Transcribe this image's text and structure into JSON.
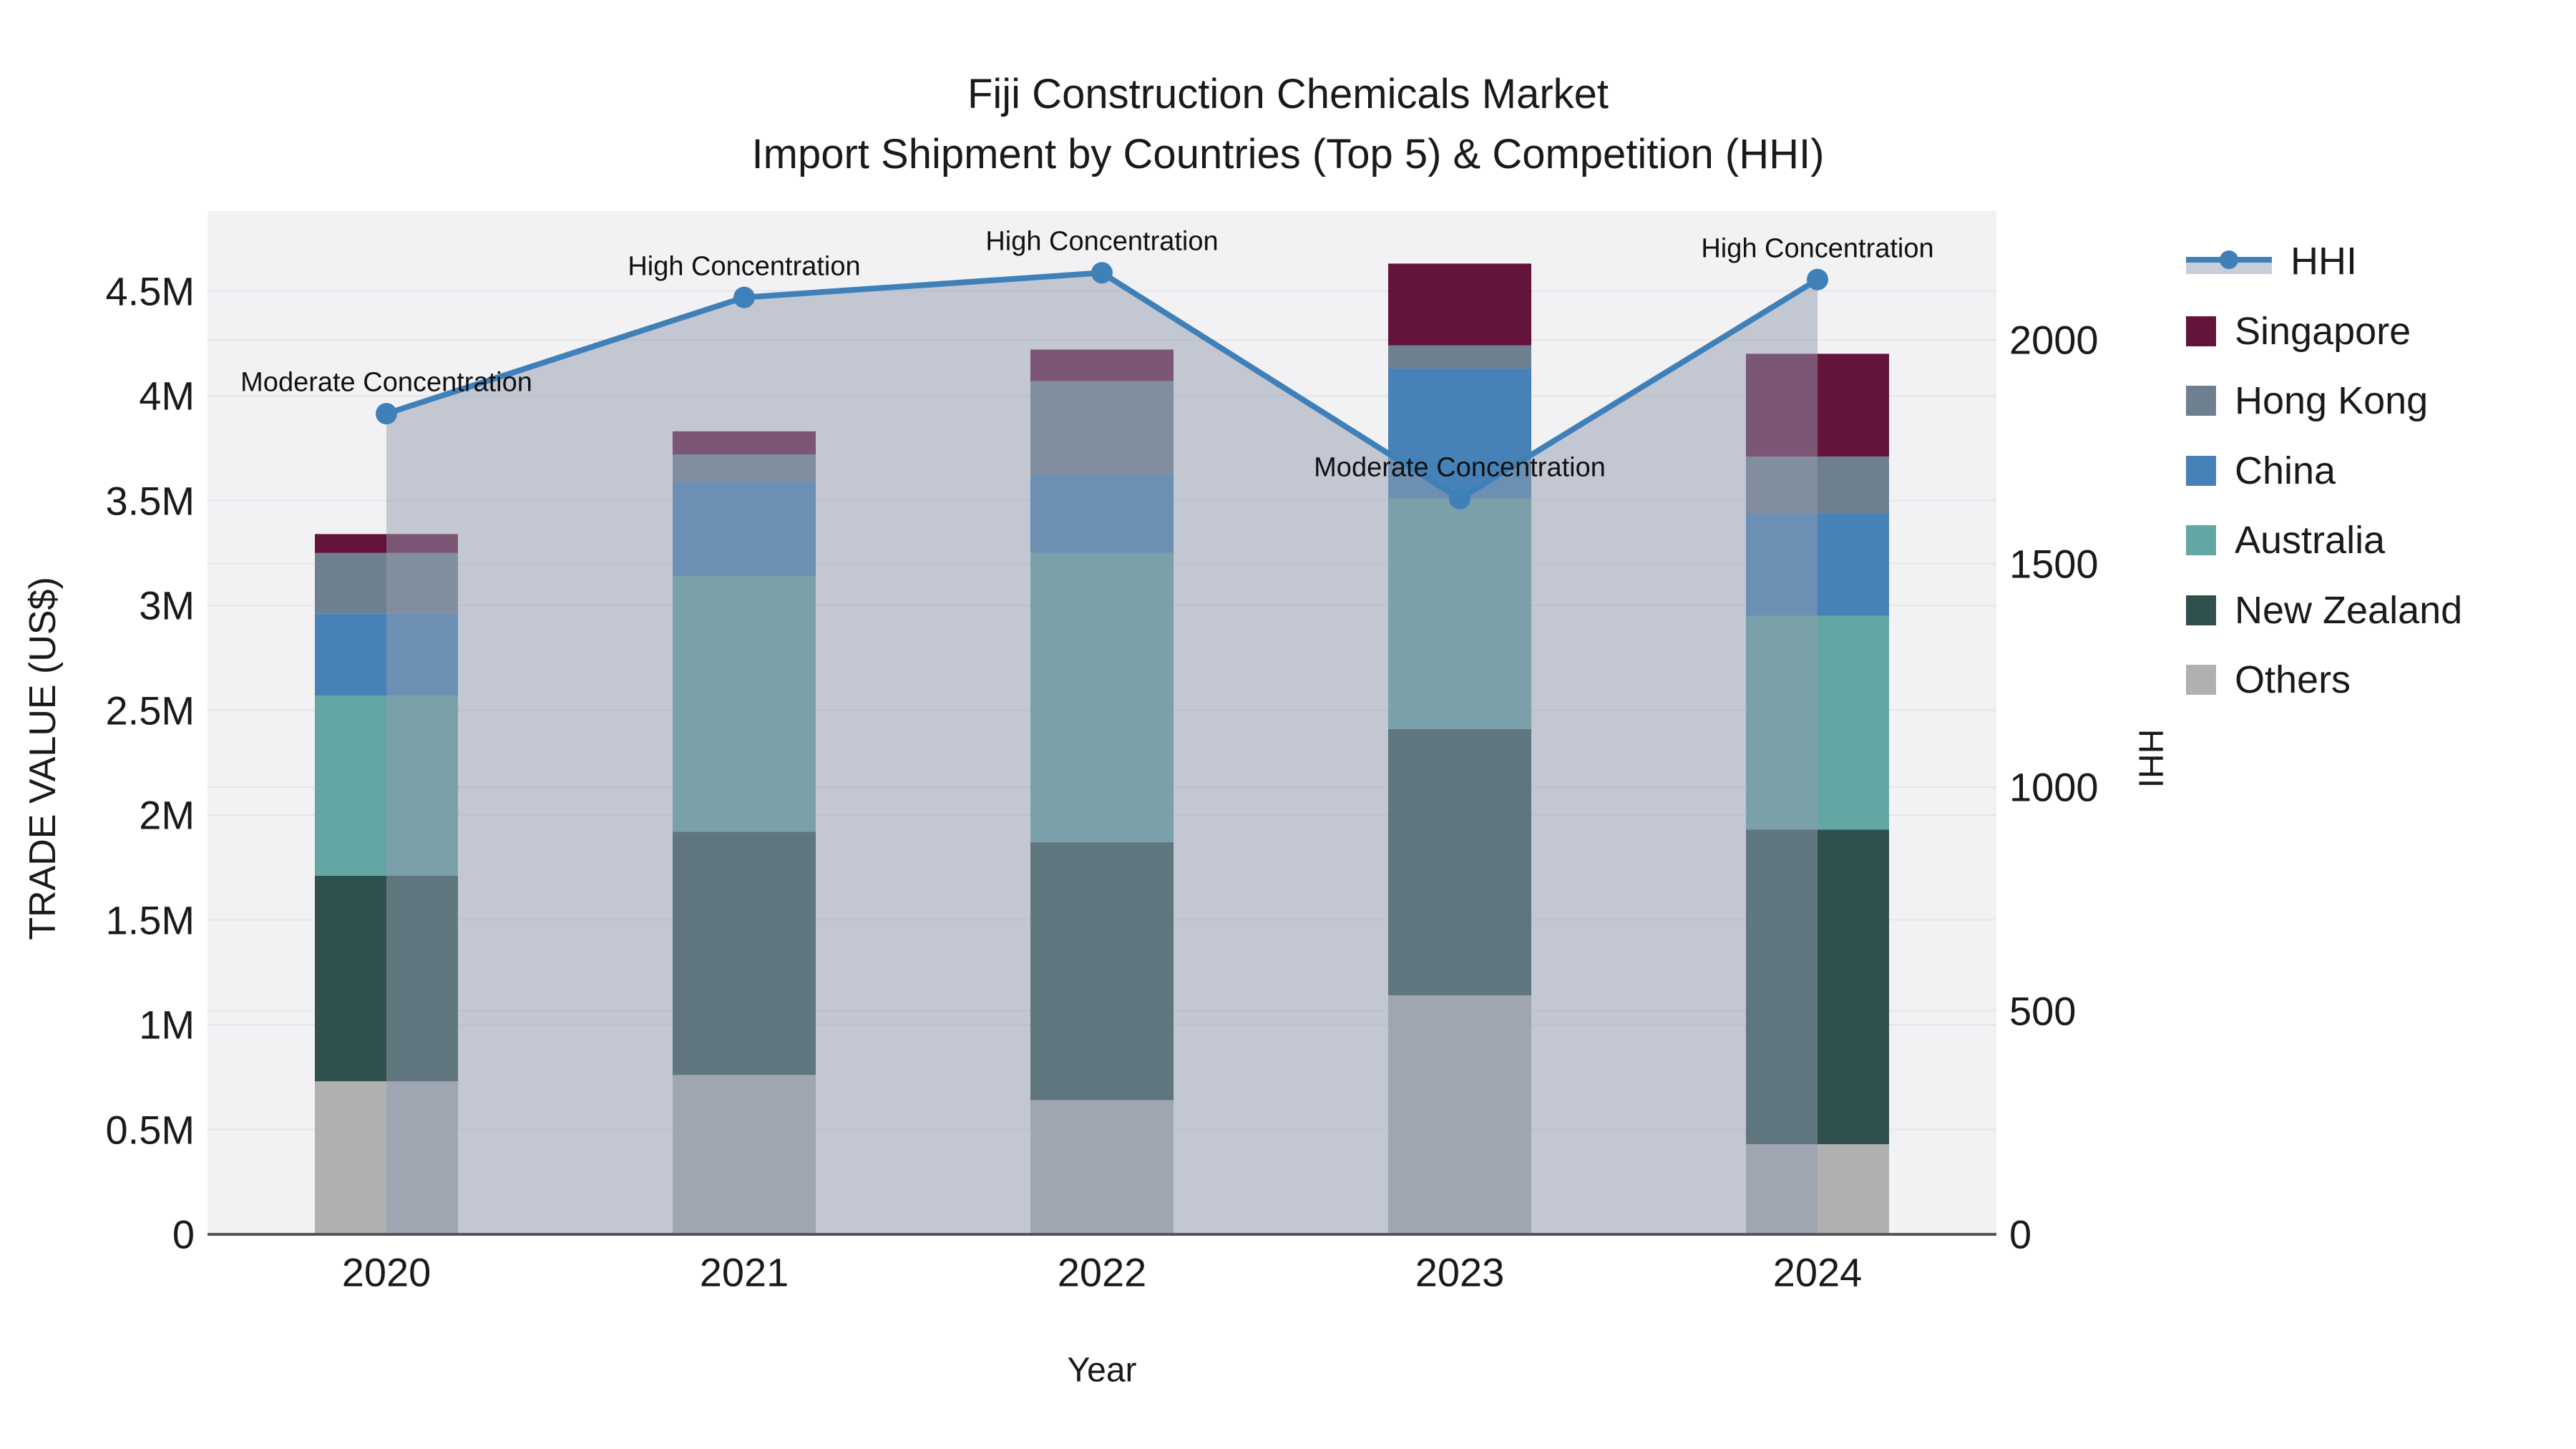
{
  "title": {
    "line1": "Fiji Construction Chemicals Market",
    "line2": "Import Shipment by Countries (Top 5) & Competition (HHI)"
  },
  "axes": {
    "x": {
      "title": "Year",
      "categories": [
        "2020",
        "2021",
        "2022",
        "2023",
        "2024"
      ]
    },
    "y_left": {
      "title": "TRADE VALUE (US$)",
      "tick_labels": [
        "0",
        "0.5M",
        "1M",
        "1.5M",
        "2M",
        "2.5M",
        "3M",
        "3.5M",
        "4M",
        "4.5M"
      ],
      "tick_values": [
        0,
        0.5,
        1,
        1.5,
        2,
        2.5,
        3,
        3.5,
        4,
        4.5
      ],
      "range_millions": [
        0,
        4.88
      ]
    },
    "y_right": {
      "title": "HHI",
      "tick_labels": [
        "0",
        "500",
        "1000",
        "1500",
        "2000"
      ],
      "tick_values": [
        0,
        500,
        1000,
        1500,
        2000
      ],
      "range": [
        0,
        2288
      ]
    }
  },
  "legend": {
    "items": [
      {
        "label": "HHI",
        "type": "line",
        "color": "#4080b8"
      },
      {
        "label": "Singapore",
        "type": "swatch",
        "color": "#64133a"
      },
      {
        "label": "Hong Kong",
        "type": "swatch",
        "color": "#6e8090"
      },
      {
        "label": "China",
        "type": "swatch",
        "color": "#4682b8"
      },
      {
        "label": "Australia",
        "type": "swatch",
        "color": "#63a6a3"
      },
      {
        "label": "New Zealand",
        "type": "swatch",
        "color": "#2f504d"
      },
      {
        "label": "Others",
        "type": "swatch",
        "color": "#aeb0b2"
      }
    ]
  },
  "chart_data": {
    "type": "bar+line",
    "bar_type": "stacked",
    "categories": [
      "2020",
      "2021",
      "2022",
      "2023",
      "2024"
    ],
    "bar_unit": "US$ millions",
    "stack_order_bottom_to_top": [
      "Others",
      "New Zealand",
      "Australia",
      "China",
      "Hong Kong",
      "Singapore"
    ],
    "series": [
      {
        "name": "Others",
        "color": "#aeb0b2",
        "values": [
          0.73,
          0.76,
          0.64,
          1.14,
          0.43
        ]
      },
      {
        "name": "New Zealand",
        "color": "#2f504d",
        "values": [
          0.98,
          1.16,
          1.23,
          1.27,
          1.5
        ]
      },
      {
        "name": "Australia",
        "color": "#63a6a3",
        "values": [
          0.86,
          1.22,
          1.38,
          1.1,
          1.02
        ]
      },
      {
        "name": "China",
        "color": "#4682b8",
        "values": [
          0.39,
          0.45,
          0.37,
          0.62,
          0.49
        ]
      },
      {
        "name": "Hong Kong",
        "color": "#6e8090",
        "values": [
          0.29,
          0.13,
          0.45,
          0.11,
          0.27
        ]
      },
      {
        "name": "Singapore",
        "color": "#64133a",
        "values": [
          0.09,
          0.11,
          0.15,
          0.39,
          0.49
        ]
      }
    ],
    "totals_millions": [
      3.34,
      3.83,
      4.22,
      4.63,
      4.2
    ],
    "line_series": {
      "name": "HHI",
      "axis": "right",
      "color": "#4080b8",
      "values": [
        1835,
        2095,
        2150,
        1645,
        2135
      ]
    },
    "annotations": [
      {
        "category": "2020",
        "text": "Moderate Concentration"
      },
      {
        "category": "2021",
        "text": "High Concentration"
      },
      {
        "category": "2022",
        "text": "High Concentration"
      },
      {
        "category": "2023",
        "text": "Moderate Concentration"
      },
      {
        "category": "2024",
        "text": "High Concentration"
      }
    ],
    "legend_position": "top-right",
    "grid": true
  },
  "colors": {
    "background": "#ffffff",
    "plot_bg": "#f2f2f4",
    "grid": "#e4e6e9",
    "axis_line": "#52565a",
    "text": "#1a1a1a",
    "hhi_line": "#4080b8",
    "hhi_marker": "#4080b8",
    "hhi_fill": "rgba(145,155,175,0.5)"
  }
}
